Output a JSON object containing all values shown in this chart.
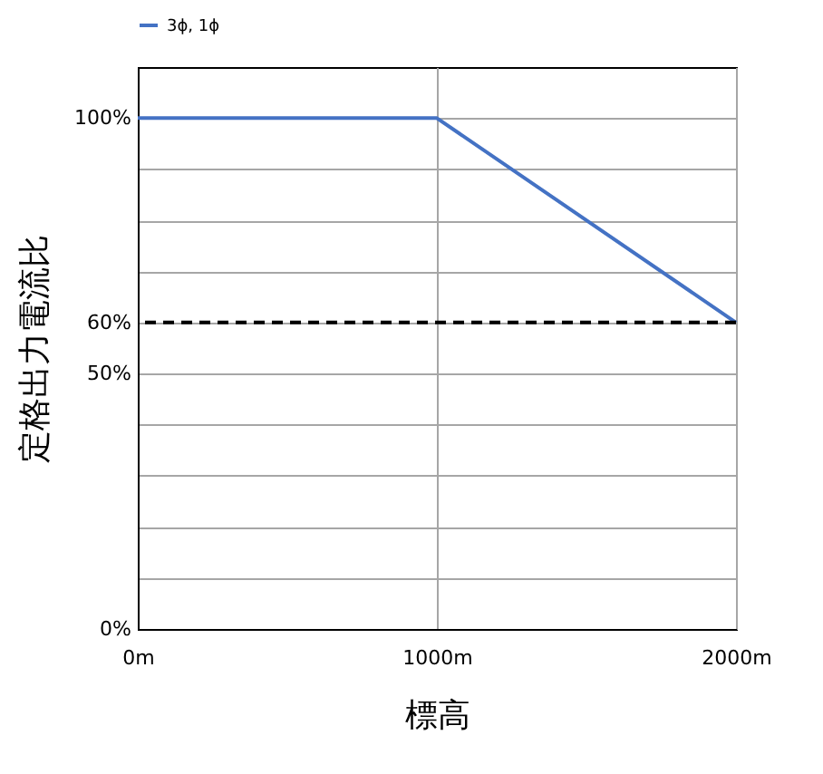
{
  "chart_data": {
    "type": "line",
    "xlabel": "標高",
    "ylabel": "定格出力電流比",
    "x": [
      0,
      1000,
      2000
    ],
    "series": [
      {
        "name": "3ϕ, 1ϕ",
        "color": "#4472c4",
        "values": [
          100,
          100,
          60
        ]
      }
    ],
    "xlim": [
      0,
      2000
    ],
    "xticks": [
      {
        "value": 0,
        "label": "0m"
      },
      {
        "value": 1000,
        "label": "1000m"
      },
      {
        "value": 2000,
        "label": "2000m"
      }
    ],
    "ylim": [
      0,
      110
    ],
    "yticks": [
      {
        "value": 0,
        "label": "0%"
      },
      {
        "value": 10,
        "label": null
      },
      {
        "value": 20,
        "label": null
      },
      {
        "value": 30,
        "label": null
      },
      {
        "value": 40,
        "label": null
      },
      {
        "value": 50,
        "label": "50%"
      },
      {
        "value": 60,
        "label": "60%"
      },
      {
        "value": 70,
        "label": null
      },
      {
        "value": 80,
        "label": null
      },
      {
        "value": 90,
        "label": null
      },
      {
        "value": 100,
        "label": "100%"
      }
    ],
    "ref_lines": [
      {
        "axis": "y",
        "value": 60,
        "color": "#000000",
        "line_style": "dashed"
      }
    ],
    "grid": true,
    "legend": "top",
    "marker": "none",
    "line_style": "solid"
  }
}
